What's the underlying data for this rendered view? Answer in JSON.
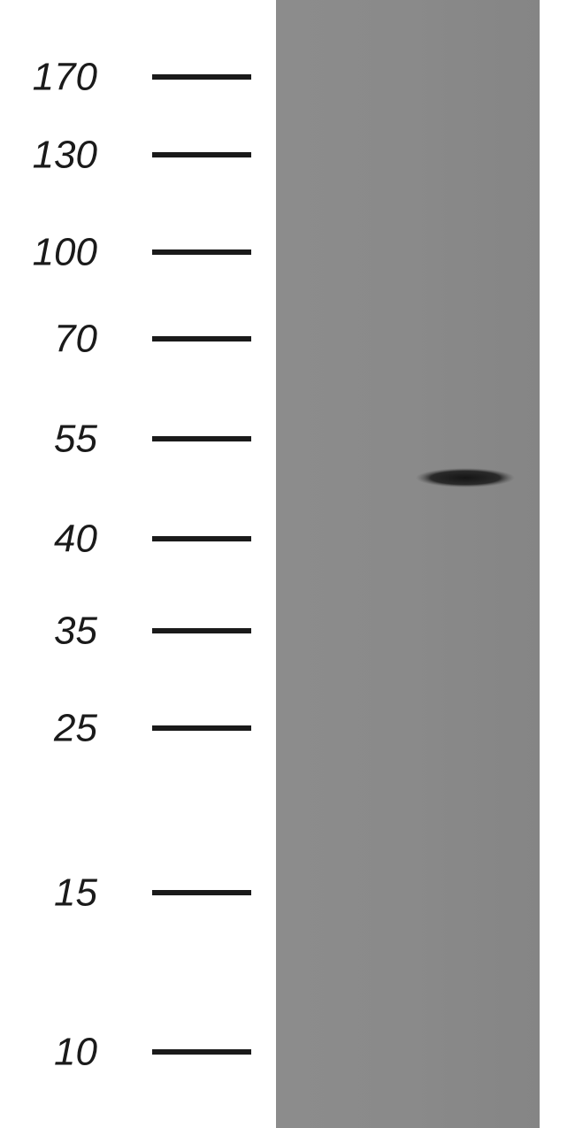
{
  "markers": [
    "170",
    "130",
    "100",
    "70",
    "55",
    "40",
    "35",
    "25",
    "15",
    "10"
  ]
}
